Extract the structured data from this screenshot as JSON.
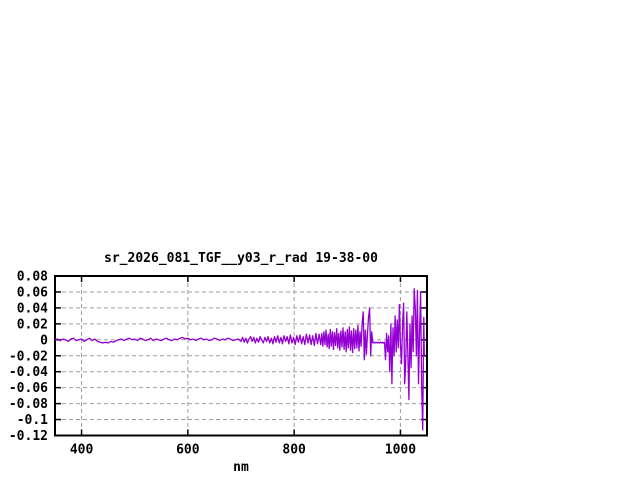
{
  "window": {
    "background": "#ffffff"
  },
  "chart_data": {
    "type": "line",
    "title": "sr_2026_081_TGF__y03_r_rad 19-38-00",
    "xlabel": "nm",
    "ylabel": "",
    "xlim": [
      350,
      1050
    ],
    "ylim": [
      -0.12,
      0.08
    ],
    "grid": "on",
    "legend": "none",
    "xticks": [
      400,
      600,
      800,
      1000
    ],
    "xtick_labels": [
      "400",
      "600",
      "800",
      "1000"
    ],
    "yticks": [
      0.08,
      0.06,
      0.04,
      0.02,
      0,
      -0.02,
      -0.04,
      -0.06,
      -0.08,
      -0.1,
      -0.12
    ],
    "ytick_labels": [
      "0.08",
      "0.06",
      "0.04",
      "0.02",
      "0",
      "-0.02",
      "-0.04",
      "-0.06",
      "-0.08",
      "-0.1",
      "-0.12"
    ],
    "colors": {
      "line": "#9400d3",
      "grid": "#9e9e9e",
      "frame": "#000000",
      "text": "#000000"
    },
    "series": [
      {
        "name": "sr_2026_081_TGF__y03_r_rad",
        "points": [
          [
            350,
            0.0
          ],
          [
            355,
            0.001
          ],
          [
            360,
            -0.001
          ],
          [
            365,
            0.001
          ],
          [
            370,
            0.0
          ],
          [
            375,
            -0.002
          ],
          [
            380,
            0.001
          ],
          [
            385,
            0.002
          ],
          [
            390,
            -0.001
          ],
          [
            395,
            0.0
          ],
          [
            400,
            0.001
          ],
          [
            405,
            -0.002
          ],
          [
            410,
            0.0
          ],
          [
            415,
            0.002
          ],
          [
            420,
            -0.001
          ],
          [
            425,
            0.001
          ],
          [
            430,
            -0.002
          ],
          [
            435,
            -0.003
          ],
          [
            440,
            -0.004
          ],
          [
            445,
            -0.003
          ],
          [
            450,
            -0.004
          ],
          [
            455,
            -0.002
          ],
          [
            460,
            -0.003
          ],
          [
            465,
            -0.001
          ],
          [
            470,
            0.0
          ],
          [
            475,
            0.001
          ],
          [
            480,
            -0.001
          ],
          [
            485,
            0.001
          ],
          [
            490,
            0.002
          ],
          [
            495,
            0.0
          ],
          [
            500,
            0.001
          ],
          [
            505,
            -0.001
          ],
          [
            510,
            0.002
          ],
          [
            515,
            0.001
          ],
          [
            520,
            -0.001
          ],
          [
            525,
            0.0
          ],
          [
            530,
            0.002
          ],
          [
            535,
            -0.001
          ],
          [
            540,
            0.001
          ],
          [
            545,
            0.0
          ],
          [
            550,
            -0.001
          ],
          [
            555,
            0.001
          ],
          [
            560,
            0.002
          ],
          [
            565,
            0.0
          ],
          [
            570,
            -0.001
          ],
          [
            575,
            0.001
          ],
          [
            580,
            0.0
          ],
          [
            585,
            0.002
          ],
          [
            590,
            0.003
          ],
          [
            595,
            0.001
          ],
          [
            600,
            0.002
          ],
          [
            605,
            0.0
          ],
          [
            610,
            0.001
          ],
          [
            615,
            -0.001
          ],
          [
            620,
            0.001
          ],
          [
            625,
            0.002
          ],
          [
            630,
            0.0
          ],
          [
            635,
            0.001
          ],
          [
            640,
            -0.001
          ],
          [
            645,
            0.0
          ],
          [
            650,
            0.002
          ],
          [
            655,
            0.001
          ],
          [
            660,
            -0.001
          ],
          [
            665,
            0.001
          ],
          [
            670,
            0.0
          ],
          [
            675,
            0.002
          ],
          [
            680,
            0.001
          ],
          [
            685,
            -0.001
          ],
          [
            690,
            0.0
          ],
          [
            695,
            0.001
          ],
          [
            700,
            -0.002
          ],
          [
            703,
            0.003
          ],
          [
            706,
            -0.003
          ],
          [
            709,
            0.002
          ],
          [
            712,
            -0.004
          ],
          [
            715,
            0.001
          ],
          [
            718,
            0.004
          ],
          [
            721,
            -0.002
          ],
          [
            724,
            0.003
          ],
          [
            727,
            -0.004
          ],
          [
            730,
            0.002
          ],
          [
            733,
            -0.003
          ],
          [
            736,
            0.004
          ],
          [
            739,
            0.0
          ],
          [
            742,
            -0.004
          ],
          [
            745,
            0.003
          ],
          [
            748,
            -0.002
          ],
          [
            751,
            0.004
          ],
          [
            754,
            -0.004
          ],
          [
            757,
            0.002
          ],
          [
            760,
            -0.005
          ],
          [
            763,
            0.004
          ],
          [
            766,
            -0.003
          ],
          [
            769,
            0.005
          ],
          [
            772,
            -0.004
          ],
          [
            775,
            0.003
          ],
          [
            778,
            -0.005
          ],
          [
            781,
            0.005
          ],
          [
            784,
            -0.002
          ],
          [
            787,
            0.004
          ],
          [
            790,
            -0.005
          ],
          [
            793,
            0.006
          ],
          [
            796,
            -0.004
          ],
          [
            799,
            0.003
          ],
          [
            802,
            -0.006
          ],
          [
            805,
            0.005
          ],
          [
            808,
            -0.003
          ],
          [
            811,
            0.006
          ],
          [
            814,
            -0.005
          ],
          [
            817,
            0.004
          ],
          [
            820,
            -0.006
          ],
          [
            823,
            0.007
          ],
          [
            826,
            -0.004
          ],
          [
            829,
            0.006
          ],
          [
            832,
            -0.006
          ],
          [
            835,
            0.005
          ],
          [
            838,
            -0.007
          ],
          [
            841,
            0.008
          ],
          [
            844,
            -0.005
          ],
          [
            847,
            0.007
          ],
          [
            850,
            -0.006
          ],
          [
            852,
            0.008
          ],
          [
            854,
            -0.008
          ],
          [
            856,
            0.01
          ],
          [
            858,
            -0.006
          ],
          [
            860,
            0.012
          ],
          [
            862,
            -0.009
          ],
          [
            864,
            0.007
          ],
          [
            866,
            -0.011
          ],
          [
            868,
            0.013
          ],
          [
            870,
            -0.008
          ],
          [
            872,
            0.01
          ],
          [
            874,
            -0.012
          ],
          [
            876,
            0.009
          ],
          [
            878,
            -0.007
          ],
          [
            880,
            0.014
          ],
          [
            882,
            -0.01
          ],
          [
            884,
            0.008
          ],
          [
            886,
            -0.013
          ],
          [
            888,
            0.011
          ],
          [
            890,
            -0.009
          ],
          [
            892,
            0.015
          ],
          [
            894,
            -0.012
          ],
          [
            896,
            0.01
          ],
          [
            898,
            -0.015
          ],
          [
            900,
            0.013
          ],
          [
            902,
            -0.01
          ],
          [
            904,
            0.016
          ],
          [
            906,
            -0.013
          ],
          [
            908,
            0.011
          ],
          [
            910,
            -0.016
          ],
          [
            912,
            0.014
          ],
          [
            914,
            -0.011
          ],
          [
            916,
            0.012
          ],
          [
            918,
            -0.01
          ],
          [
            920,
            0.018
          ],
          [
            922,
            -0.014
          ],
          [
            924,
            0.01
          ],
          [
            926,
            -0.008
          ],
          [
            928,
            0.022
          ],
          [
            930,
            0.035
          ],
          [
            932,
            -0.025
          ],
          [
            934,
            0.012
          ],
          [
            936,
            -0.018
          ],
          [
            938,
            0.008
          ],
          [
            940,
            0.028
          ],
          [
            942,
            0.04
          ],
          [
            944,
            -0.02
          ],
          [
            946,
            0.01
          ],
          [
            948,
            -0.004
          ],
          [
            950,
            -0.003
          ],
          [
            952,
            -0.004
          ],
          [
            954,
            -0.003
          ],
          [
            956,
            -0.004
          ],
          [
            958,
            -0.003
          ],
          [
            960,
            -0.004
          ],
          [
            962,
            -0.003
          ],
          [
            964,
            -0.004
          ],
          [
            966,
            -0.003
          ],
          [
            968,
            -0.004
          ],
          [
            970,
            -0.003
          ],
          [
            972,
            -0.025
          ],
          [
            974,
            0.008
          ],
          [
            976,
            -0.015
          ],
          [
            978,
            0.005
          ],
          [
            980,
            -0.04
          ],
          [
            982,
            0.02
          ],
          [
            984,
            -0.055
          ],
          [
            986,
            0.015
          ],
          [
            988,
            -0.02
          ],
          [
            990,
            0.03
          ],
          [
            992,
            -0.015
          ],
          [
            994,
            0.025
          ],
          [
            996,
            -0.01
          ],
          [
            998,
            0.044
          ],
          [
            1000,
            -0.005
          ],
          [
            1002,
            -0.03
          ],
          [
            1004,
            0.02
          ],
          [
            1006,
            0.046
          ],
          [
            1008,
            -0.055
          ],
          [
            1010,
            -0.03
          ],
          [
            1012,
            0.035
          ],
          [
            1014,
            -0.02
          ],
          [
            1016,
            -0.075
          ],
          [
            1018,
            0.02
          ],
          [
            1020,
            -0.035
          ],
          [
            1022,
            0.03
          ],
          [
            1024,
            -0.015
          ],
          [
            1026,
            0.064
          ],
          [
            1028,
            0.04
          ],
          [
            1030,
            -0.02
          ],
          [
            1032,
            0.062
          ],
          [
            1034,
            -0.055
          ],
          [
            1036,
            0.01
          ],
          [
            1038,
            0.06
          ],
          [
            1040,
            -0.06
          ],
          [
            1042,
            -0.113
          ],
          [
            1044,
            0.028
          ],
          [
            1045,
            -0.02
          ]
        ]
      }
    ]
  }
}
